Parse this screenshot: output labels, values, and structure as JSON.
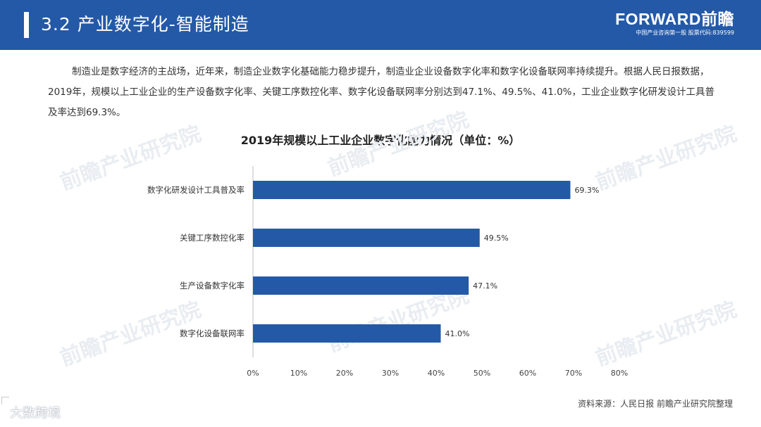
{
  "header": {
    "title": "3.2 产业数字化-智能制造",
    "brand_name": "FORWARD前瞻",
    "brand_sub": "中国产业咨询第一股 股票代码:839599"
  },
  "intro": "制造业是数字经济的主战场，近年来，制造企业数字化基础能力稳步提升，制造业企业设备数字化率和数字化设备联网率持续提升。根据人民日报数据，2019年，规模以上工业企业的生产设备数字化率、关键工序数控化率、数字化设备联网率分别达到47.1%、49.5%、41.0%，工业企业数字化研发设计工具普及率达到69.3%。",
  "source": "资料来源：人民日报 前瞻产业研究院整理",
  "footer_brand": "大数跨境",
  "watermark": "前瞻产业研究院",
  "colors": {
    "header": "#2459a8",
    "bar": "#2459a8"
  },
  "chart_data": {
    "type": "bar",
    "orientation": "horizontal",
    "title": "2019年规模以上工业企业数字化能力情况（单位：%）",
    "categories": [
      "数字化研发设计工具普及率",
      "关键工序数控化率",
      "生产设备数字化率",
      "数字化设备联网率"
    ],
    "values": [
      69.3,
      49.5,
      47.1,
      41.0
    ],
    "value_labels": [
      "69.3%",
      "49.5%",
      "47.1%",
      "41.0%"
    ],
    "xlim": [
      0,
      80
    ],
    "xticks": [
      "0%",
      "10%",
      "20%",
      "30%",
      "40%",
      "50%",
      "60%",
      "70%",
      "80%"
    ],
    "grid": false,
    "legend": "none"
  }
}
